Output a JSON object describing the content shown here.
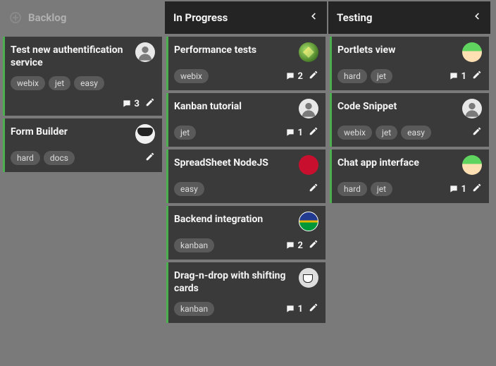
{
  "colors": {
    "page_bg": "#7a7a7a",
    "header_dark_bg": "#242424",
    "header_light_text": "#b0b0b0",
    "header_dark_text": "#f4f4f4",
    "card_bg": "#3a3a3a",
    "card_accent": "#4caf50",
    "tag_bg": "#5a5a5a",
    "tag_text": "#dddddd",
    "text": "#f4f4f4"
  },
  "columns": [
    {
      "id": "backlog",
      "title": "Backlog",
      "style": "light",
      "has_add": true,
      "collapsible": false,
      "cards": [
        {
          "title": "Test new authentification service",
          "avatar": "default",
          "tags": [
            "webix",
            "jet",
            "easy"
          ],
          "comments": 3,
          "two_row": true
        },
        {
          "title": "Form Builder",
          "avatar": "shades",
          "tags": [
            "hard",
            "docs"
          ],
          "comments": null,
          "two_row": false
        }
      ]
    },
    {
      "id": "in_progress",
      "title": "In Progress",
      "style": "dark",
      "has_add": false,
      "collapsible": true,
      "cards": [
        {
          "title": "Performance tests",
          "avatar": "leaf",
          "tags": [
            "webix"
          ],
          "comments": 2,
          "two_row": false
        },
        {
          "title": "Kanban tutorial",
          "avatar": "default",
          "tags": [
            "jet"
          ],
          "comments": 1,
          "two_row": false
        },
        {
          "title": "SpreadSheet NodeJS",
          "avatar": "uk",
          "tags": [
            "easy"
          ],
          "comments": null,
          "two_row": false
        },
        {
          "title": "Backend integration",
          "avatar": "flag",
          "tags": [
            "kanban"
          ],
          "comments": 2,
          "two_row": false
        },
        {
          "title": "Drag-n-drop with shifting cards",
          "avatar": "tea",
          "tags": [
            "kanban"
          ],
          "comments": 1,
          "two_row": false
        }
      ]
    },
    {
      "id": "testing",
      "title": "Testing",
      "style": "dark",
      "has_add": false,
      "collapsible": true,
      "cards": [
        {
          "title": "Portlets view",
          "avatar": "anime",
          "tags": [
            "hard",
            "jet"
          ],
          "comments": 1,
          "two_row": false
        },
        {
          "title": "Code Snippet",
          "avatar": "default",
          "tags": [
            "webix",
            "jet",
            "easy"
          ],
          "comments": null,
          "two_row": false
        },
        {
          "title": "Chat app interface",
          "avatar": "anime",
          "tags": [
            "hard",
            "jet"
          ],
          "comments": 1,
          "two_row": false
        }
      ]
    }
  ]
}
